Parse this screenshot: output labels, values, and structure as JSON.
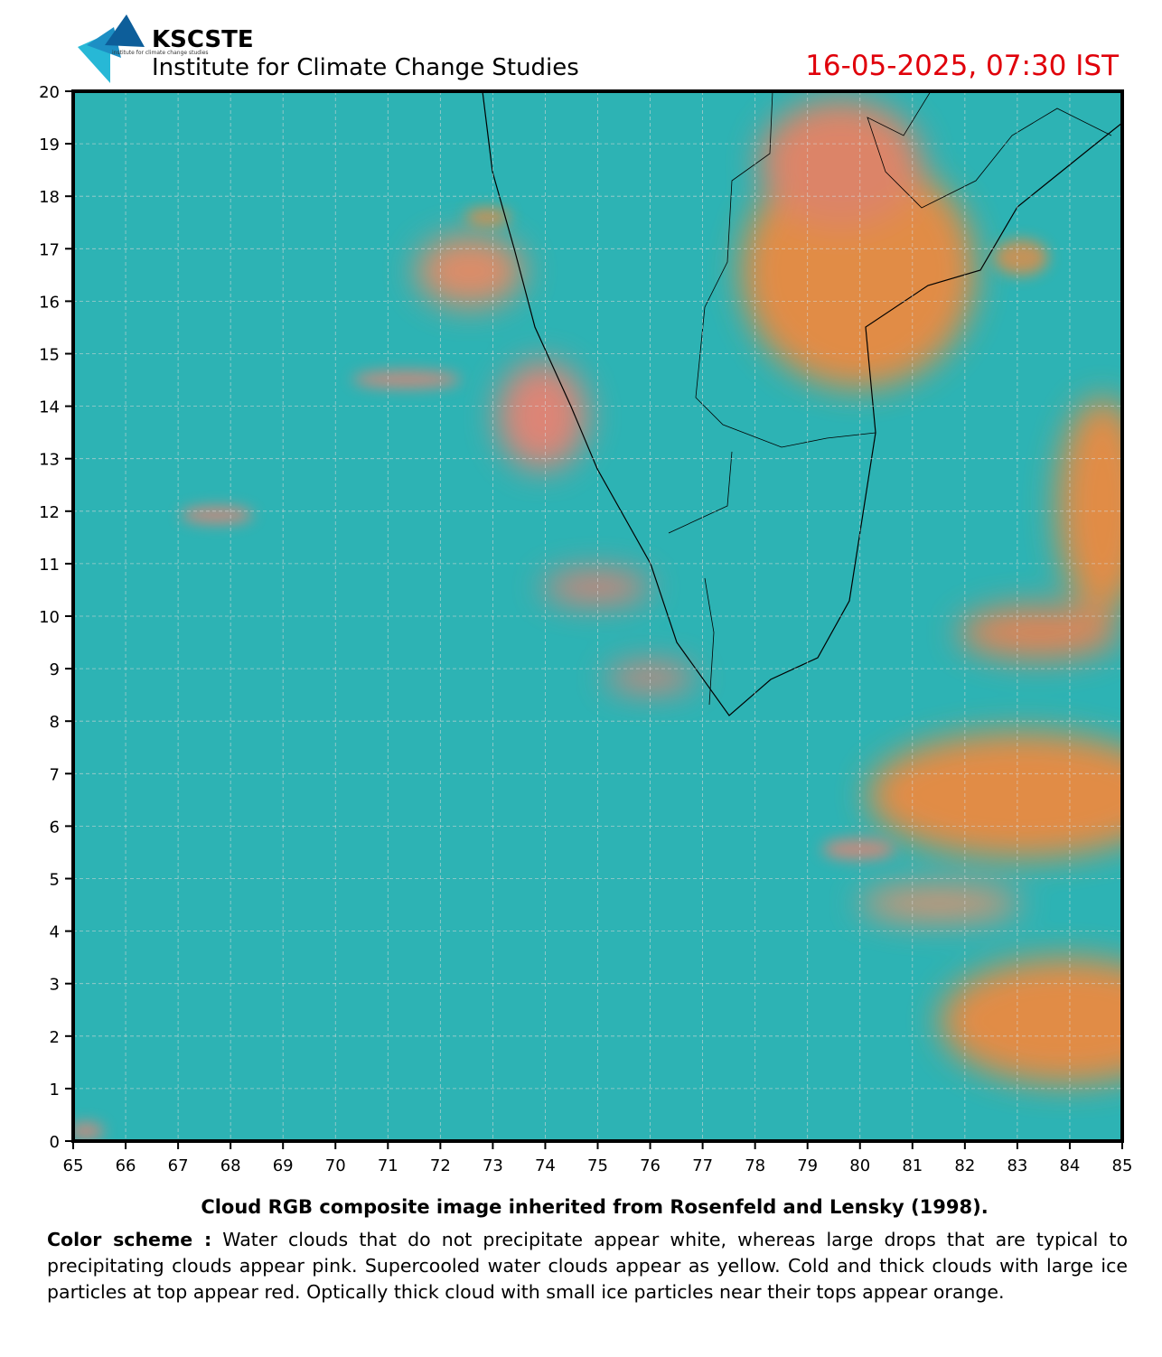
{
  "header": {
    "org": "KSCSTE",
    "institute": "Institute for Climate Change Studies",
    "logo_text": "institute for climate change studies",
    "timestamp": "16-05-2025, 07:30 IST"
  },
  "map": {
    "xlim": [
      65,
      85
    ],
    "ylim": [
      0,
      20
    ],
    "xticks": [
      65,
      66,
      67,
      68,
      69,
      70,
      71,
      72,
      73,
      74,
      75,
      76,
      77,
      78,
      79,
      80,
      81,
      82,
      83,
      84,
      85
    ],
    "yticks": [
      0,
      1,
      2,
      3,
      4,
      5,
      6,
      7,
      8,
      9,
      10,
      11,
      12,
      13,
      14,
      15,
      16,
      17,
      18,
      19,
      20
    ],
    "grid": true
  },
  "caption": {
    "title": "Cloud RGB composite image inherited from Rosenfeld and Lensky (1998).",
    "scheme_label": "Color scheme :",
    "scheme_text": "Water clouds that do not precipitate appear white, whereas large drops that are typical to precipitating clouds appear pink. Supercooled water clouds appear as yellow. Cold and thick clouds with large ice particles at top appear red. Optically thick cloud with small ice particles near their tops appear orange."
  }
}
